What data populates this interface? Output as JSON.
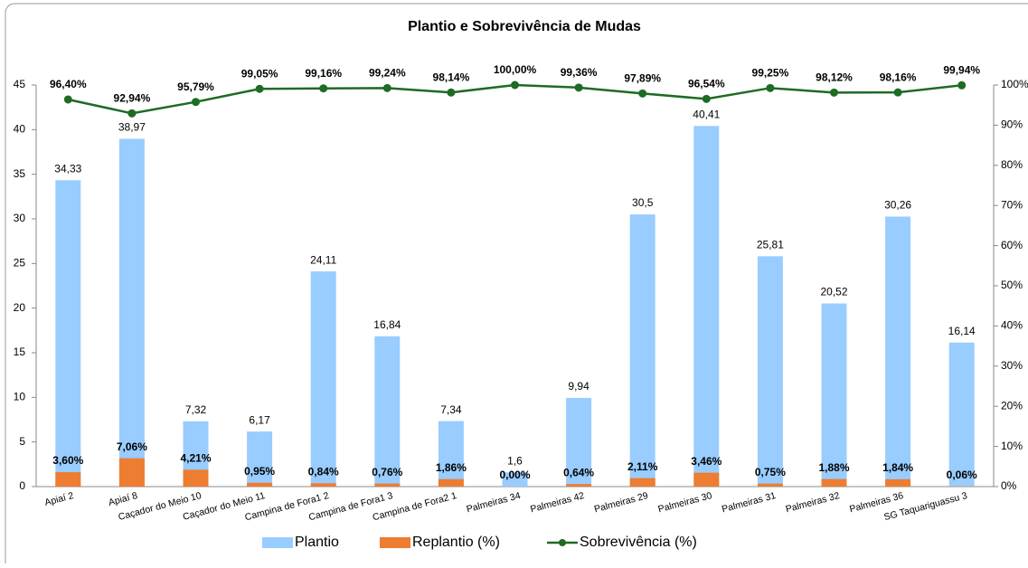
{
  "chart_data": {
    "type": "bar_line",
    "title": "Plantio e Sobrevivência de Mudas",
    "categories": [
      "Apiaí 2",
      "Apiaí 8",
      "Caçador do Meio 10",
      "Caçador do Meio 11",
      "Campina de Fora1 2",
      "Campina de Fora1 3",
      "Campina de Fora2 1",
      "Palmeiras 34",
      "Palmeiras 42",
      "Palmeiras 29",
      "Palmeiras 30",
      "Palmeiras 31",
      "Palmeiras 32",
      "Palmeiras 36",
      "SG Taquariguassu 3"
    ],
    "series": [
      {
        "name": "Plantio",
        "type": "bar",
        "color": "#99ccff",
        "values": [
          34.33,
          38.97,
          7.32,
          6.17,
          24.11,
          16.84,
          7.34,
          1.6,
          9.94,
          30.5,
          40.41,
          25.81,
          20.52,
          30.26,
          16.14
        ],
        "value_labels": [
          "34,33",
          "38,97",
          "7,32",
          "6,17",
          "24,11",
          "16,84",
          "7,34",
          "1,6",
          "9,94",
          "30,5",
          "40,41",
          "25,81",
          "20,52",
          "30,26",
          "16,14"
        ]
      },
      {
        "name": "Replantio (%)",
        "type": "bar",
        "axis": "y2",
        "color": "#ed7d31",
        "values": [
          3.6,
          7.06,
          4.21,
          0.95,
          0.84,
          0.76,
          1.86,
          0.0,
          0.64,
          2.11,
          3.46,
          0.75,
          1.88,
          1.84,
          0.06
        ],
        "value_labels": [
          "3,60%",
          "7,06%",
          "4,21%",
          "0,95%",
          "0,84%",
          "0,76%",
          "1,86%",
          "0,00%",
          "0,64%",
          "2,11%",
          "3,46%",
          "0,75%",
          "1,88%",
          "1,84%",
          "0,06%"
        ]
      },
      {
        "name": "Sobrevivência (%)",
        "type": "line",
        "axis": "y2",
        "color": "#1e6b24",
        "values": [
          96.4,
          92.94,
          95.79,
          99.05,
          99.16,
          99.24,
          98.14,
          100.0,
          99.36,
          97.89,
          96.54,
          99.25,
          98.12,
          98.16,
          99.94
        ],
        "value_labels": [
          "96,40%",
          "92,94%",
          "95,79%",
          "99,05%",
          "99,16%",
          "99,24%",
          "98,14%",
          "100,00%",
          "99,36%",
          "97,89%",
          "96,54%",
          "99,25%",
          "98,12%",
          "98,16%",
          "99,94%"
        ]
      }
    ],
    "ylim": [
      0,
      45
    ],
    "yticks": [
      0,
      5,
      10,
      15,
      20,
      25,
      30,
      35,
      40,
      45
    ],
    "y2lim": [
      0,
      100
    ],
    "y2ticks": [
      {
        "value": 0,
        "label": "0%"
      },
      {
        "value": 10,
        "label": "10%"
      },
      {
        "value": 20,
        "label": "20%"
      },
      {
        "value": 30,
        "label": "30%"
      },
      {
        "value": 40,
        "label": "40%"
      },
      {
        "value": 50,
        "label": "50%"
      },
      {
        "value": 60,
        "label": "60%"
      },
      {
        "value": 70,
        "label": "70%"
      },
      {
        "value": 80,
        "label": "80%"
      },
      {
        "value": 90,
        "label": "90%"
      },
      {
        "value": 100,
        "label": "100%"
      }
    ],
    "grid": false,
    "legend": "bottom"
  }
}
